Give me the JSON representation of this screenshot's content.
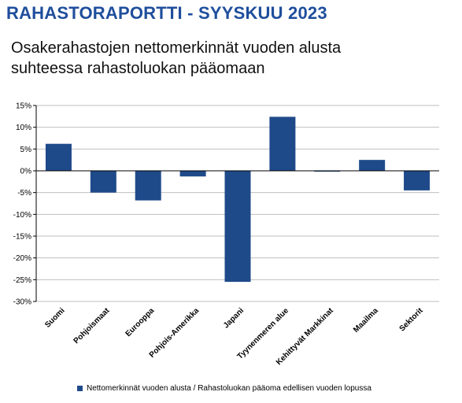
{
  "header": {
    "title": "RAHASTORAPORTTI - SYYSKUU 2023",
    "subtitle_line1": "Osakerahastojen nettomerkinnät vuoden alusta",
    "subtitle_line2": "suhteessa rahastoluokan pääomaan"
  },
  "colors": {
    "bar": "#1f4a8a",
    "title": "#1f4e9c",
    "grid": "#bfbfbf"
  },
  "chart_data": {
    "type": "bar",
    "title": "",
    "xlabel": "",
    "ylabel": "",
    "ylim": [
      -30,
      15
    ],
    "yticks": [
      15,
      10,
      5,
      0,
      -5,
      -10,
      -15,
      -20,
      -25,
      -30
    ],
    "ytick_labels": [
      "15%",
      "10%",
      "5%",
      "0%",
      "-5%",
      "-10%",
      "-15%",
      "-20%",
      "-25%",
      "-30%"
    ],
    "grid": true,
    "legend_position": "bottom",
    "categories": [
      "Suomi",
      "Pohjoismaat",
      "Eurooppa",
      "Pohjois-Amerikka",
      "Japani",
      "Tyynenmeren alue",
      "Kehittyvät Markkinat",
      "Maailma",
      "Sektorit"
    ],
    "series": [
      {
        "name": "Nettomerkinnät vuoden alusta / Rahastoluokan pääoma edellisen vuoden lopussa",
        "values": [
          6.2,
          -5.0,
          -6.8,
          -1.3,
          -25.5,
          12.4,
          -0.2,
          2.5,
          -4.5
        ]
      }
    ]
  }
}
